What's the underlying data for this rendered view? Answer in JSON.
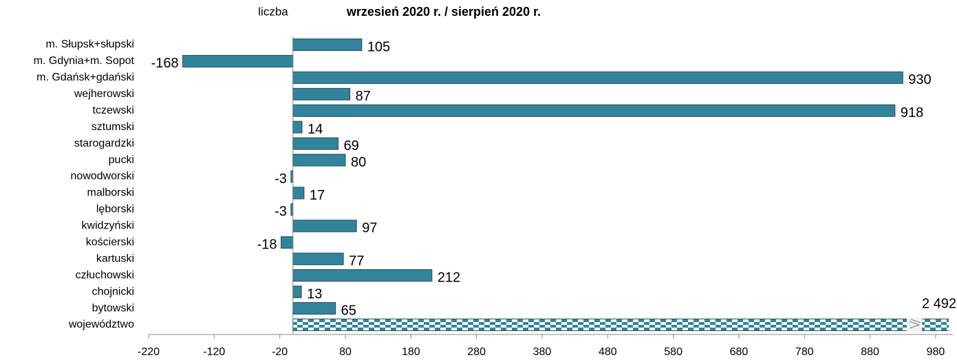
{
  "chart_data": {
    "type": "barh",
    "title": "wrzesień 2020 r. / sierpień 2020 r.",
    "x_label": "liczba",
    "categories": [
      "m. Słupsk+słupski",
      "m. Gdynia+m. Sopot",
      "m. Gdańsk+gdański",
      "wejherowski",
      "tczewski",
      "sztumski",
      "starogardzki",
      "pucki",
      "nowodworski",
      "malborski",
      "lęborski",
      "kwidzyński",
      "kościerski",
      "kartuski",
      "człuchowski",
      "chojnicki",
      "bytowski",
      "województwo"
    ],
    "values": [
      105,
      -168,
      930,
      87,
      918,
      14,
      69,
      80,
      -3,
      17,
      -3,
      97,
      -18,
      77,
      212,
      13,
      65,
      2492
    ],
    "value_labels": [
      "105",
      "-168",
      "930",
      "87",
      "918",
      "14",
      "69",
      "80",
      "-3",
      "17",
      "-3",
      "97",
      "-18",
      "77",
      "212",
      "13",
      "65",
      "2 492"
    ],
    "color": "#31849b",
    "xlim": [
      -220,
      1000
    ],
    "xticks": [
      -220,
      -120,
      -20,
      80,
      180,
      280,
      380,
      480,
      580,
      680,
      780,
      880,
      980
    ]
  }
}
